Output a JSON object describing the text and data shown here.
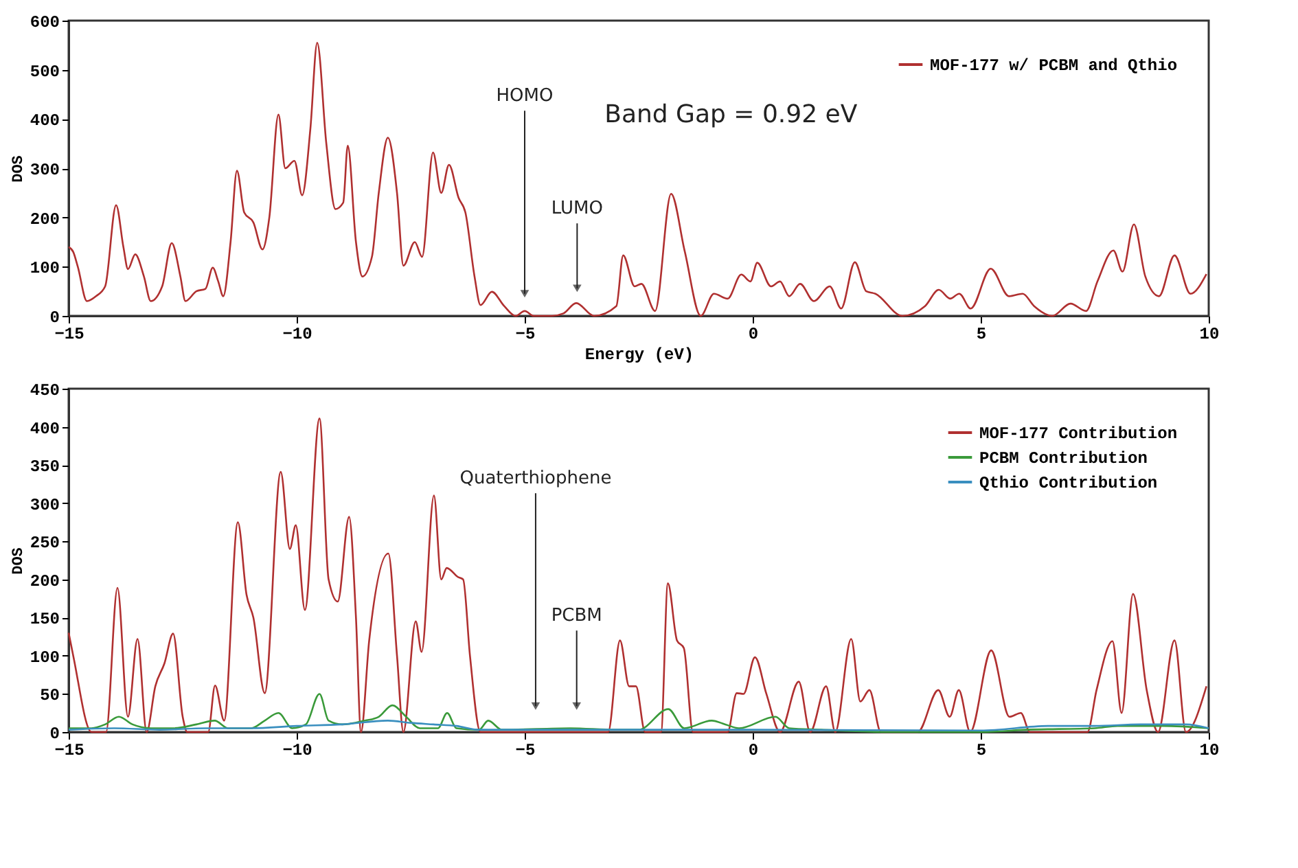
{
  "chart_data": [
    {
      "type": "line",
      "xlabel": "Energy (eV)",
      "ylabel": "DOS",
      "xlim": [
        -15,
        10
      ],
      "ylim": [
        0,
        600
      ],
      "xticks": [
        -15,
        -10,
        -5,
        0,
        5,
        10
      ],
      "yticks": [
        0,
        100,
        200,
        300,
        400,
        500,
        600
      ],
      "legend": "top right",
      "grid": false,
      "line_style": "solid",
      "marker": "none",
      "annotations": [
        "Band Gap = 0.92 eV",
        {
          "text": "HOMO",
          "x": -5,
          "y": 45
        },
        {
          "text": "LUMO",
          "x": -3.85,
          "y": 56
        }
      ],
      "series": [
        {
          "name": "MOF-177 w/ PCBM and Qthio",
          "color": "#b03030",
          "x": [
            -15,
            -14.9,
            -14.8,
            -14.6,
            -14.4,
            -14.2,
            -13.96,
            -13.8,
            -13.7,
            -13.54,
            -13.35,
            -13.2,
            -12.95,
            -12.74,
            -12.55,
            -12.44,
            -12.2,
            -12.0,
            -11.84,
            -11.72,
            -11.61,
            -11.45,
            -11.31,
            -11.15,
            -10.95,
            -10.75,
            -10.6,
            -10.4,
            -10.25,
            -10.05,
            -9.88,
            -9.7,
            -9.55,
            -9.35,
            -9.15,
            -8.98,
            -8.88,
            -8.7,
            -8.56,
            -8.35,
            -8.2,
            -8.0,
            -7.8,
            -7.66,
            -7.41,
            -7.25,
            -7.01,
            -6.83,
            -6.66,
            -6.45,
            -6.3,
            -6.1,
            -5.97,
            -5.72,
            -5.45,
            -5.2,
            -5.0,
            -4.8,
            -4.4,
            -4.15,
            -3.87,
            -3.48,
            -2.99,
            -2.84,
            -2.59,
            -2.44,
            -2.14,
            -1.79,
            -1.49,
            -1.14,
            -0.85,
            -0.55,
            -0.25,
            -0.05,
            0.1,
            0.4,
            0.6,
            0.8,
            1.04,
            1.34,
            1.69,
            1.94,
            2.24,
            2.49,
            2.69,
            3.28,
            3.78,
            4.08,
            4.33,
            4.53,
            4.78,
            5.22,
            5.62,
            5.92,
            6.17,
            6.57,
            6.97,
            7.31,
            7.56,
            7.91,
            8.11,
            8.36,
            8.61,
            8.91,
            9.25,
            9.6,
            9.95
          ],
          "values": [
            140,
            130,
            100,
            30,
            40,
            60,
            225,
            140,
            95,
            125,
            80,
            30,
            60,
            148,
            80,
            30,
            50,
            55,
            98,
            70,
            40,
            150,
            295,
            210,
            190,
            135,
            200,
            409,
            300,
            315,
            245,
            380,
            555,
            350,
            217,
            230,
            346,
            150,
            80,
            120,
            250,
            362,
            250,
            102,
            150,
            120,
            332,
            250,
            307,
            240,
            210,
            80,
            22,
            49,
            20,
            0,
            10,
            0,
            0,
            5,
            26,
            0,
            20,
            123,
            60,
            65,
            10,
            248,
            131,
            0,
            45,
            35,
            84,
            70,
            108,
            60,
            70,
            40,
            65,
            30,
            60,
            15,
            109,
            50,
            45,
            0,
            20,
            53,
            35,
            45,
            15,
            96,
            40,
            45,
            20,
            0,
            25,
            10,
            70,
            133,
            90,
            186,
            80,
            40,
            123,
            45,
            85
          ]
        }
      ]
    },
    {
      "type": "line",
      "ylabel": "DOS",
      "xlim": [
        -15,
        10
      ],
      "ylim": [
        0,
        450
      ],
      "xticks": [
        -15,
        -10,
        -5,
        0,
        5,
        10
      ],
      "yticks": [
        0,
        50,
        100,
        150,
        200,
        250,
        300,
        350,
        400,
        450
      ],
      "legend": "top right",
      "grid": false,
      "line_style": "solid",
      "marker": "none",
      "annotations": [
        {
          "text": "Quaterthiophene",
          "x": -4.76,
          "y": 34
        },
        {
          "text": "PCBM",
          "x": -3.86,
          "y": 34
        }
      ],
      "series": [
        {
          "name": "MOF-177 Contribution",
          "color": "#b03030",
          "x": [
            -15,
            -14.9,
            -14.5,
            -14.18,
            -13.93,
            -13.7,
            -13.49,
            -13.29,
            -13.1,
            -12.9,
            -12.71,
            -12.5,
            -12.4,
            -11.94,
            -11.79,
            -11.59,
            -11.29,
            -11.1,
            -10.95,
            -10.7,
            -10.35,
            -10.15,
            -10.02,
            -9.82,
            -9.5,
            -9.3,
            -9.1,
            -8.85,
            -8.7,
            -8.59,
            -8.41,
            -7.99,
            -7.8,
            -7.66,
            -7.39,
            -7.26,
            -6.99,
            -6.83,
            -6.71,
            -6.46,
            -6.35,
            -6.2,
            -5.97,
            -3.17,
            -2.91,
            -2.71,
            -2.56,
            -2.36,
            -2.01,
            -1.86,
            -1.66,
            -1.51,
            -1.31,
            -0.55,
            -0.35,
            -0.2,
            0.05,
            0.3,
            0.6,
            1.01,
            1.26,
            1.61,
            1.81,
            2.16,
            2.36,
            2.56,
            2.81,
            3.62,
            4.07,
            4.32,
            4.52,
            4.77,
            5.23,
            5.63,
            5.88,
            6.08,
            7.34,
            7.54,
            7.89,
            8.09,
            8.34,
            8.64,
            8.89,
            9.25,
            9.5,
            9.95
          ],
          "values": [
            130,
            100,
            0,
            0,
            189,
            20,
            122,
            0,
            60,
            90,
            129,
            20,
            0,
            0,
            61,
            15,
            275,
            180,
            150,
            51,
            341,
            240,
            271,
            160,
            411,
            200,
            171,
            282,
            150,
            0,
            120,
            234,
            100,
            0,
            145,
            105,
            310,
            200,
            215,
            203,
            200,
            100,
            0,
            0,
            120,
            60,
            60,
            0,
            0,
            195,
            120,
            110,
            0,
            0,
            51,
            50,
            98,
            50,
            0,
            66,
            0,
            60,
            0,
            122,
            40,
            55,
            0,
            0,
            55,
            20,
            55,
            0,
            107,
            20,
            25,
            0,
            0,
            55,
            119,
            25,
            181,
            55,
            0,
            120,
            0,
            60
          ]
        },
        {
          "name": "PCBM Contribution",
          "color": "#3a9a3a",
          "x": [
            -15,
            -14.5,
            -14.2,
            -13.9,
            -13.6,
            -13.2,
            -12.7,
            -12.2,
            -11.8,
            -11.5,
            -11.0,
            -10.7,
            -10.4,
            -10.1,
            -9.8,
            -9.5,
            -9.3,
            -9.0,
            -8.5,
            -8.2,
            -7.9,
            -7.6,
            -7.3,
            -6.9,
            -6.7,
            -6.5,
            -6.0,
            -5.8,
            -5.5,
            -4.0,
            -3.0,
            -2.5,
            -1.85,
            -1.5,
            -0.9,
            -0.6,
            -0.3,
            0.5,
            0.8,
            1.5,
            3,
            5,
            6,
            7.5,
            8,
            9,
            10
          ],
          "values": [
            5,
            5,
            10,
            20,
            10,
            5,
            5,
            10,
            15,
            5,
            5,
            15,
            25,
            5,
            10,
            50,
            15,
            10,
            15,
            20,
            35,
            20,
            5,
            5,
            25,
            5,
            3,
            15,
            3,
            5,
            3,
            3,
            30,
            5,
            15,
            10,
            5,
            20,
            5,
            3,
            0,
            0,
            3,
            5,
            8,
            8,
            5
          ]
        },
        {
          "name": "Qthio Contribution",
          "color": "#3a8fbf",
          "x": [
            -15,
            -14,
            -13,
            -12,
            -11,
            -10,
            -9,
            -8,
            -7.5,
            -7,
            -6.5,
            -6,
            -5,
            0,
            5,
            6.5,
            7.5,
            8.5,
            9.5,
            10
          ],
          "values": [
            3,
            5,
            3,
            5,
            5,
            8,
            10,
            15,
            12,
            10,
            8,
            3,
            3,
            3,
            2,
            8,
            8,
            10,
            10,
            5
          ]
        }
      ]
    }
  ]
}
